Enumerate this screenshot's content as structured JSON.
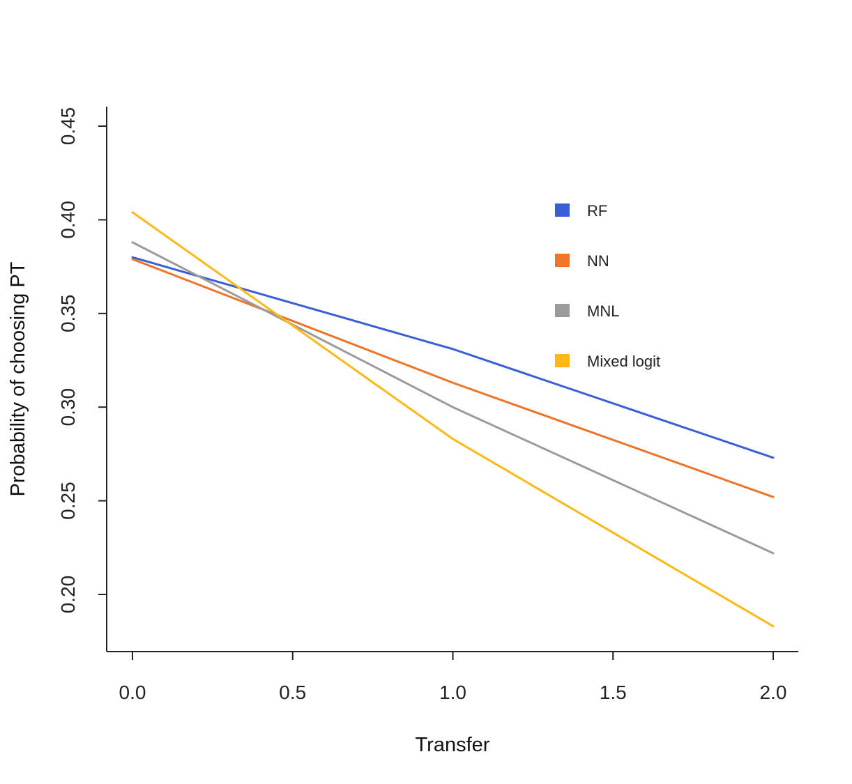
{
  "chart_data": {
    "type": "line",
    "title": "",
    "xlabel": "Transfer",
    "ylabel": "Probability of choosing PT",
    "x": [
      0.0,
      1.0,
      2.0
    ],
    "xlim": [
      -0.08,
      2.08
    ],
    "ylim": [
      0.17,
      0.46
    ],
    "x_ticks": [
      0.0,
      0.5,
      1.0,
      1.5,
      2.0
    ],
    "x_tick_labels": [
      "0.0",
      "0.5",
      "1.0",
      "1.5",
      "2.0"
    ],
    "y_ticks": [
      0.2,
      0.25,
      0.3,
      0.35,
      0.4,
      0.45
    ],
    "y_tick_labels": [
      "0.20",
      "0.25",
      "0.30",
      "0.35",
      "0.40",
      "0.45"
    ],
    "grid": false,
    "legend_position": "top-right",
    "series": [
      {
        "name": "RF",
        "color": "#3A5FD4",
        "values": [
          0.38,
          0.331,
          0.273
        ]
      },
      {
        "name": "NN",
        "color": "#EE7428",
        "values": [
          0.379,
          0.313,
          0.252
        ]
      },
      {
        "name": "MNL",
        "color": "#9B9B9B",
        "values": [
          0.388,
          0.3,
          0.222
        ]
      },
      {
        "name": "Mixed logit",
        "color": "#FDB913",
        "values": [
          0.404,
          0.283,
          0.183
        ]
      }
    ]
  }
}
